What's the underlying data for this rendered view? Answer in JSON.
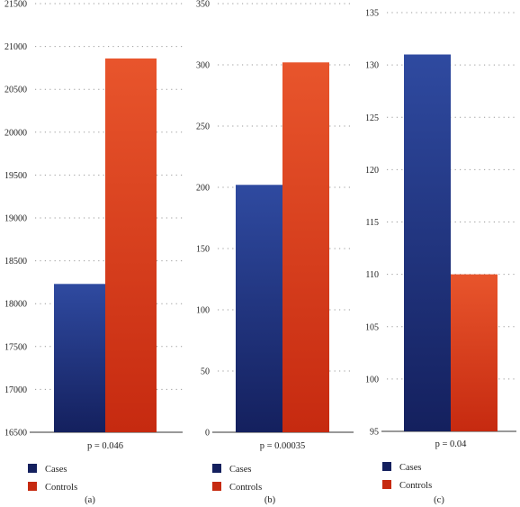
{
  "colors": {
    "cases_top": "#2f4aa0",
    "cases_bottom": "#14205e",
    "controls_top": "#e8552c",
    "controls_bottom": "#c62a10",
    "grid": "#999999",
    "text": "#222222"
  },
  "chart_data": [
    {
      "type": "bar",
      "panel_label": "(a)",
      "categories": [
        "Cases",
        "Controls"
      ],
      "values": [
        18230,
        20860
      ],
      "ylim": [
        16500,
        21500
      ],
      "yticks": [
        "16500",
        "17000",
        "17500",
        "18000",
        "18500",
        "19000",
        "19500",
        "20000",
        "20500",
        "21000",
        "21500"
      ],
      "xlabel": "p = 0.046",
      "grid": true,
      "legend": [
        {
          "name": "Cases"
        },
        {
          "name": "Controls"
        }
      ]
    },
    {
      "type": "bar",
      "panel_label": "(b)",
      "categories": [
        "Cases",
        "Controls"
      ],
      "values": [
        202,
        302
      ],
      "ylim": [
        0,
        350
      ],
      "yticks": [
        "0",
        "50",
        "100",
        "150",
        "200",
        "250",
        "300",
        "350"
      ],
      "xlabel": "p = 0.00035",
      "grid": true,
      "legend": [
        {
          "name": "Cases"
        },
        {
          "name": "Controls"
        }
      ]
    },
    {
      "type": "bar",
      "panel_label": "(c)",
      "categories": [
        "Cases",
        "Controls"
      ],
      "values": [
        131,
        110
      ],
      "ylim": [
        95,
        135
      ],
      "yticks": [
        "95",
        "100",
        "105",
        "110",
        "115",
        "120",
        "125",
        "130",
        "135"
      ],
      "xlabel": "p = 0.04",
      "grid": true,
      "legend": [
        {
          "name": "Cases"
        },
        {
          "name": "Controls"
        }
      ]
    }
  ]
}
